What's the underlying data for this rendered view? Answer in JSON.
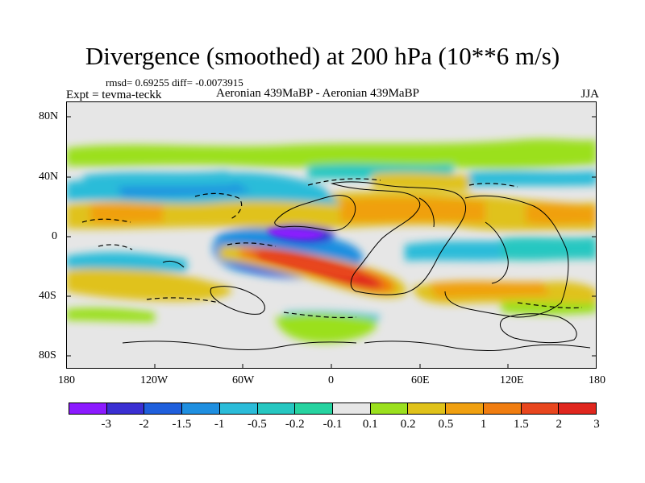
{
  "title": "Divergence (smoothed) at 200 hPa (10**6 m/s)",
  "stats": "rmsd= 0.69255 diff= -0.0073915",
  "expt": "Expt = tevma-teckk",
  "comparison": "Aeronian 439MaBP - Aeronian 439MaBP",
  "season": "JJA",
  "map": {
    "lat_labels": [
      "80N",
      "40N",
      "0",
      "40S",
      "80S"
    ],
    "lon_labels": [
      "180",
      "120W",
      "60W",
      "0",
      "60E",
      "120E",
      "180"
    ]
  },
  "colorbar": {
    "labels": [
      "-3",
      "-2",
      "-1.5",
      "-1",
      "-0.5",
      "-0.2",
      "-0.1",
      "0.1",
      "0.2",
      "0.5",
      "1",
      "1.5",
      "2",
      "3"
    ],
    "colors": [
      "#8c1aff",
      "#3a2fd2",
      "#1f5fdc",
      "#1f8fe0",
      "#2bbcd9",
      "#26c7c1",
      "#26d3a0",
      "#e6e6e6",
      "#9be01e",
      "#e0c21a",
      "#f0a010",
      "#f07d10",
      "#e8461e",
      "#e0261e"
    ]
  }
}
